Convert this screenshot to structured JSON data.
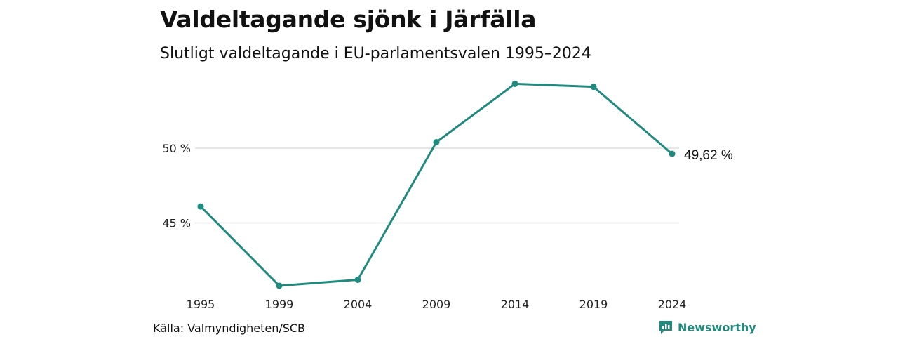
{
  "title": "Valdeltagande sjönk i Järfälla",
  "subtitle": "Slutligt valdeltagande i EU-parlamentsvalen 1995–2024",
  "source": "Källa: Valmyndigheten/SCB",
  "brand": {
    "name": "Newsworthy",
    "icon": "newsworthy-logo-icon"
  },
  "colors": {
    "line": "#1f8a7e",
    "grid": "#dddddd"
  },
  "chart_data": {
    "type": "line",
    "categories": [
      "1995",
      "1999",
      "2004",
      "2009",
      "2014",
      "2019",
      "2024"
    ],
    "values": [
      46.1,
      40.8,
      41.2,
      50.4,
      54.3,
      54.1,
      49.62
    ],
    "y_ticks": [
      {
        "value": 45,
        "label": "45 %"
      },
      {
        "value": 50,
        "label": "50 %"
      }
    ],
    "end_label": "49,62 %",
    "grid": "horizontal",
    "legend": "none"
  }
}
